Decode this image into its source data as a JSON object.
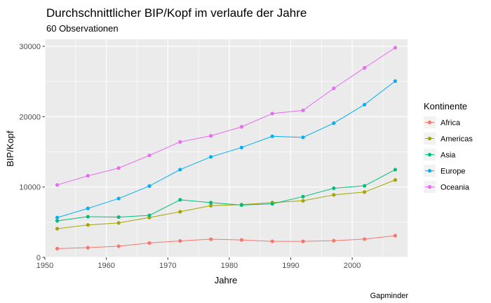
{
  "chart_data": {
    "type": "line",
    "title": "Durchschnittlicher BIP/Kopf im verlaufe der Jahre",
    "subtitle": "60 Observationen",
    "xlabel": "Jahre",
    "ylabel": "BIP/Kopf",
    "caption": "Gapminder",
    "xlim": [
      1950,
      2009
    ],
    "ylim": [
      0,
      31000
    ],
    "x_ticks": [
      "1950",
      "1960",
      "1970",
      "1980",
      "1990",
      "2000"
    ],
    "y_ticks": [
      "0",
      "10000",
      "20000",
      "30000"
    ],
    "grid": true,
    "legend": {
      "title": "Kontinente",
      "position": "right"
    },
    "x": [
      1952,
      1957,
      1962,
      1967,
      1972,
      1977,
      1982,
      1987,
      1992,
      1997,
      2002,
      2007
    ],
    "series": [
      {
        "name": "Africa",
        "color": "#F8766D",
        "values": [
          1253,
          1385,
          1598,
          2050,
          2340,
          2586,
          2482,
          2283,
          2282,
          2379,
          2599,
          3089
        ]
      },
      {
        "name": "Americas",
        "color": "#A3A500",
        "values": [
          4079,
          4616,
          4902,
          5668,
          6491,
          7352,
          7507,
          7793,
          8045,
          8889,
          9288,
          11003
        ]
      },
      {
        "name": "Asia",
        "color": "#00BF7D",
        "values": [
          5195,
          5788,
          5729,
          5971,
          8187,
          7791,
          7434,
          7608,
          8640,
          9834,
          10174,
          12473
        ]
      },
      {
        "name": "Europe",
        "color": "#00B0F6",
        "values": [
          5661,
          6963,
          8365,
          10144,
          12480,
          14284,
          15618,
          17214,
          17062,
          19077,
          21712,
          25054
        ]
      },
      {
        "name": "Oceania",
        "color": "#E76BF3",
        "values": [
          10298,
          11599,
          12696,
          14496,
          16417,
          17284,
          18555,
          20448,
          20894,
          24024,
          26939,
          29810
        ]
      }
    ]
  }
}
